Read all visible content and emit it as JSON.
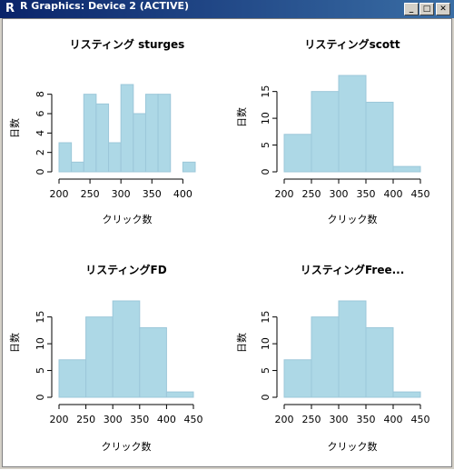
{
  "window": {
    "title": "R Graphics: Device 2 (ACTIVE)",
    "minimize_label": "_",
    "maximize_label": "□",
    "close_label": "✕",
    "app_icon": "r-logo-icon"
  },
  "style": {
    "bar_fill": "#add8e6",
    "bar_stroke": "#9cc7d9",
    "axis_color": "#000000"
  },
  "chart_data": [
    {
      "type": "bar",
      "title": "リスティング sturges",
      "xlabel": "クリック数",
      "ylabel": "日数",
      "bins": [
        [
          200,
          220
        ],
        [
          220,
          240
        ],
        [
          240,
          260
        ],
        [
          260,
          280
        ],
        [
          280,
          300
        ],
        [
          300,
          320
        ],
        [
          320,
          340
        ],
        [
          340,
          360
        ],
        [
          360,
          380
        ],
        [
          380,
          400
        ],
        [
          400,
          420
        ]
      ],
      "values": [
        3,
        1,
        8,
        7,
        3,
        9,
        6,
        8,
        8,
        0,
        1
      ],
      "xticks": [
        200,
        250,
        300,
        350,
        400
      ],
      "yticks": [
        0,
        2,
        4,
        6,
        8
      ],
      "xlim": [
        200,
        420
      ],
      "ylim": [
        0,
        9
      ]
    },
    {
      "type": "bar",
      "title": "リスティングscott",
      "xlabel": "クリック数",
      "ylabel": "日数",
      "bins": [
        [
          200,
          250
        ],
        [
          250,
          300
        ],
        [
          300,
          350
        ],
        [
          350,
          400
        ],
        [
          400,
          450
        ]
      ],
      "values": [
        7,
        15,
        18,
        13,
        1
      ],
      "xticks": [
        200,
        250,
        300,
        350,
        400,
        450
      ],
      "yticks": [
        0,
        5,
        10,
        15
      ],
      "xlim": [
        200,
        450
      ],
      "ylim": [
        0,
        18
      ]
    },
    {
      "type": "bar",
      "title": "リスティングFD",
      "xlabel": "クリック数",
      "ylabel": "日数",
      "bins": [
        [
          200,
          250
        ],
        [
          250,
          300
        ],
        [
          300,
          350
        ],
        [
          350,
          400
        ],
        [
          400,
          450
        ]
      ],
      "values": [
        7,
        15,
        18,
        13,
        1
      ],
      "xticks": [
        200,
        250,
        300,
        350,
        400,
        450
      ],
      "yticks": [
        0,
        5,
        10,
        15
      ],
      "xlim": [
        200,
        450
      ],
      "ylim": [
        0,
        18
      ]
    },
    {
      "type": "bar",
      "title": "リスティングFree...",
      "xlabel": "クリック数",
      "ylabel": "日数",
      "bins": [
        [
          200,
          250
        ],
        [
          250,
          300
        ],
        [
          300,
          350
        ],
        [
          350,
          400
        ],
        [
          400,
          450
        ]
      ],
      "values": [
        7,
        15,
        18,
        13,
        1
      ],
      "xticks": [
        200,
        250,
        300,
        350,
        400,
        450
      ],
      "yticks": [
        0,
        5,
        10,
        15
      ],
      "xlim": [
        200,
        450
      ],
      "ylim": [
        0,
        18
      ]
    }
  ]
}
